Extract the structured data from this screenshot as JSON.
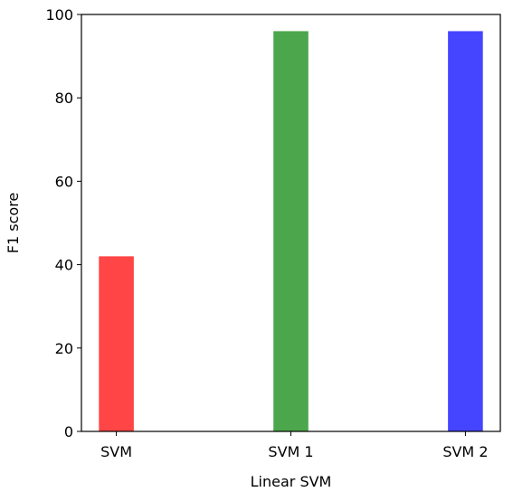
{
  "chart_data": {
    "type": "bar",
    "categories": [
      "SVM",
      "SVM 1",
      "SVM 2"
    ],
    "values": [
      42,
      96,
      96
    ],
    "colors": [
      "#ff4545",
      "#4ca64c",
      "#4545ff"
    ],
    "title": "",
    "xlabel": "Linear SVM",
    "ylabel": "F1 score",
    "ylim": [
      0,
      100
    ],
    "yticks": [
      0,
      20,
      40,
      60,
      80,
      100
    ],
    "grid": false,
    "legend": "none"
  }
}
